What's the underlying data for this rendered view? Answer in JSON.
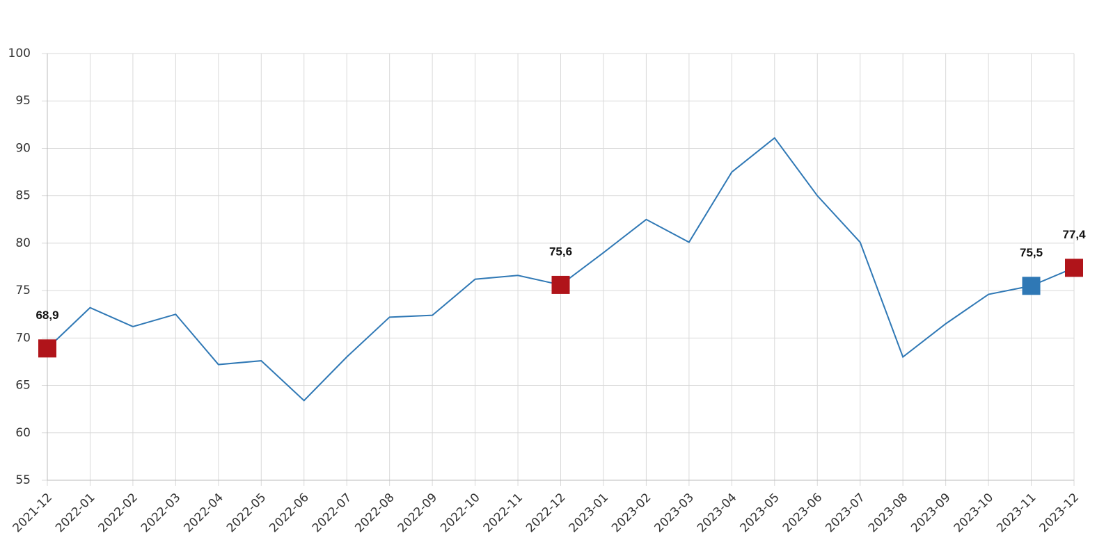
{
  "chart_data": {
    "type": "line",
    "categories": [
      "2021-12",
      "2022-01",
      "2022-02",
      "2022-03",
      "2022-04",
      "2022-05",
      "2022-06",
      "2022-07",
      "2022-08",
      "2022-09",
      "2022-10",
      "2022-11",
      "2022-12",
      "2023-01",
      "2023-02",
      "2023-03",
      "2023-04",
      "2023-05",
      "2023-06",
      "2023-07",
      "2023-08",
      "2023-09",
      "2023-10",
      "2023-11",
      "2023-12"
    ],
    "series": [
      {
        "color": "#2f78b5",
        "values": [
          68.9,
          73.2,
          71.2,
          72.5,
          67.2,
          67.6,
          63.4,
          68.0,
          72.2,
          72.4,
          76.2,
          76.6,
          75.6,
          79.0,
          82.5,
          80.1,
          87.5,
          91.1,
          85.0,
          80.1,
          68.0,
          71.5,
          74.6,
          75.5,
          77.4
        ],
        "value_labels": [
          "68,9",
          null,
          null,
          null,
          null,
          null,
          null,
          null,
          null,
          null,
          null,
          null,
          "75,6",
          null,
          null,
          null,
          null,
          null,
          null,
          null,
          null,
          null,
          null,
          "75,5",
          "77,4"
        ],
        "marker_colors": [
          "#b0141a",
          null,
          null,
          null,
          null,
          null,
          null,
          null,
          null,
          null,
          null,
          null,
          "#b0141a",
          null,
          null,
          null,
          null,
          null,
          null,
          null,
          null,
          null,
          null,
          "#2f78b5",
          "#b0141a"
        ]
      }
    ],
    "ylim": [
      55,
      100
    ],
    "yticks": [
      55,
      60,
      65,
      70,
      75,
      80,
      85,
      90,
      95,
      100
    ],
    "grid": true
  }
}
